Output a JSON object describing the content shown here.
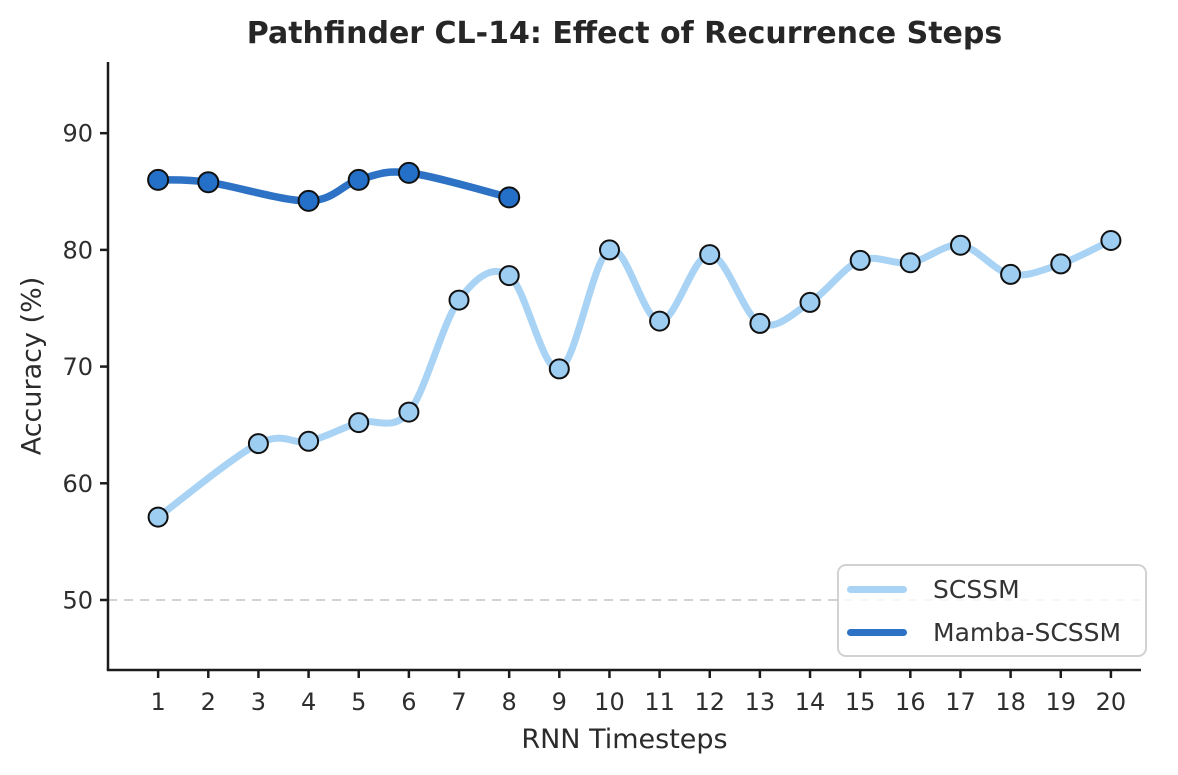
{
  "chart_data": {
    "type": "line",
    "title": "Pathfinder CL-14: Effect of Recurrence Steps",
    "xlabel": "RNN Timesteps",
    "ylabel": "Accuracy (%)",
    "x_ticks": [
      1,
      2,
      3,
      4,
      5,
      6,
      7,
      8,
      9,
      10,
      11,
      12,
      13,
      14,
      15,
      16,
      17,
      18,
      19,
      20
    ],
    "y_ticks": [
      50,
      60,
      70,
      80,
      90
    ],
    "xlim": [
      0.0,
      20.6
    ],
    "ylim": [
      44.0,
      96.1
    ],
    "grid": false,
    "reference_line": {
      "y": 50,
      "style": "dashed",
      "color": "#cccccc"
    },
    "series": [
      {
        "name": "SCSSM",
        "color": "#a9d3f5",
        "marker_fill": "#9ecdf2",
        "marker_edge": "#111111",
        "x": [
          1,
          3,
          4,
          5,
          6,
          7,
          8,
          9,
          10,
          11,
          12,
          13,
          14,
          15,
          16,
          17,
          18,
          19,
          20
        ],
        "y": [
          57.1,
          63.4,
          63.6,
          65.2,
          66.1,
          75.7,
          77.8,
          69.8,
          80.0,
          73.9,
          79.6,
          73.7,
          75.5,
          79.1,
          78.9,
          80.4,
          77.9,
          78.8,
          80.8
        ]
      },
      {
        "name": "Mamba-SCSSM",
        "color": "#2d72c4",
        "marker_fill": "#2470c8",
        "marker_edge": "#111111",
        "x": [
          1,
          2,
          4,
          5,
          6,
          8
        ],
        "y": [
          86.0,
          85.8,
          84.2,
          86.0,
          86.6,
          84.5
        ]
      }
    ],
    "legend": {
      "position": "lower right",
      "entries": [
        {
          "label": "SCSSM",
          "color": "#a9d3f5"
        },
        {
          "label": "Mamba-SCSSM",
          "color": "#2d72c4"
        }
      ]
    },
    "axis_color": "#1c1c1c",
    "tick_label_color": "#2e2e2e"
  }
}
